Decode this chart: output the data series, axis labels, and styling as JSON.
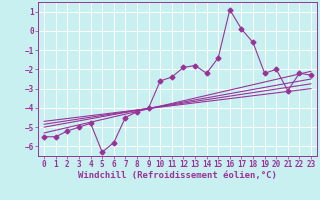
{
  "xlabel": "Windchill (Refroidissement éolien,°C)",
  "background_color": "#c8f0f0",
  "line_color": "#993399",
  "grid_color": "#ffffff",
  "xlim": [
    -0.5,
    23.5
  ],
  "ylim": [
    -6.5,
    1.5
  ],
  "yticks": [
    1,
    0,
    -1,
    -2,
    -3,
    -4,
    -5,
    -6
  ],
  "xticks": [
    0,
    1,
    2,
    3,
    4,
    5,
    6,
    7,
    8,
    9,
    10,
    11,
    12,
    13,
    14,
    15,
    16,
    17,
    18,
    19,
    20,
    21,
    22,
    23
  ],
  "scatter_x": [
    0,
    1,
    2,
    3,
    4,
    5,
    6,
    7,
    8,
    9,
    10,
    11,
    12,
    13,
    14,
    15,
    16,
    17,
    18,
    19,
    20,
    21,
    22,
    23
  ],
  "scatter_y": [
    -5.5,
    -5.5,
    -5.2,
    -5.0,
    -4.8,
    -6.3,
    -5.8,
    -4.5,
    -4.2,
    -4.0,
    -2.6,
    -2.4,
    -1.9,
    -1.8,
    -2.2,
    -1.4,
    1.1,
    0.1,
    -0.6,
    -2.2,
    -2.0,
    -3.1,
    -2.2,
    -2.3
  ],
  "line1_x": [
    0,
    23
  ],
  "line1_y": [
    -5.3,
    -2.1
  ],
  "line2_x": [
    0,
    23
  ],
  "line2_y": [
    -5.0,
    -2.5
  ],
  "line3_x": [
    0,
    23
  ],
  "line3_y": [
    -4.85,
    -2.75
  ],
  "line4_x": [
    0,
    23
  ],
  "line4_y": [
    -4.7,
    -3.0
  ],
  "marker": "D",
  "markersize": 2.5,
  "linewidth": 0.8,
  "xlabel_fontsize": 6.5,
  "tick_fontsize": 5.5
}
